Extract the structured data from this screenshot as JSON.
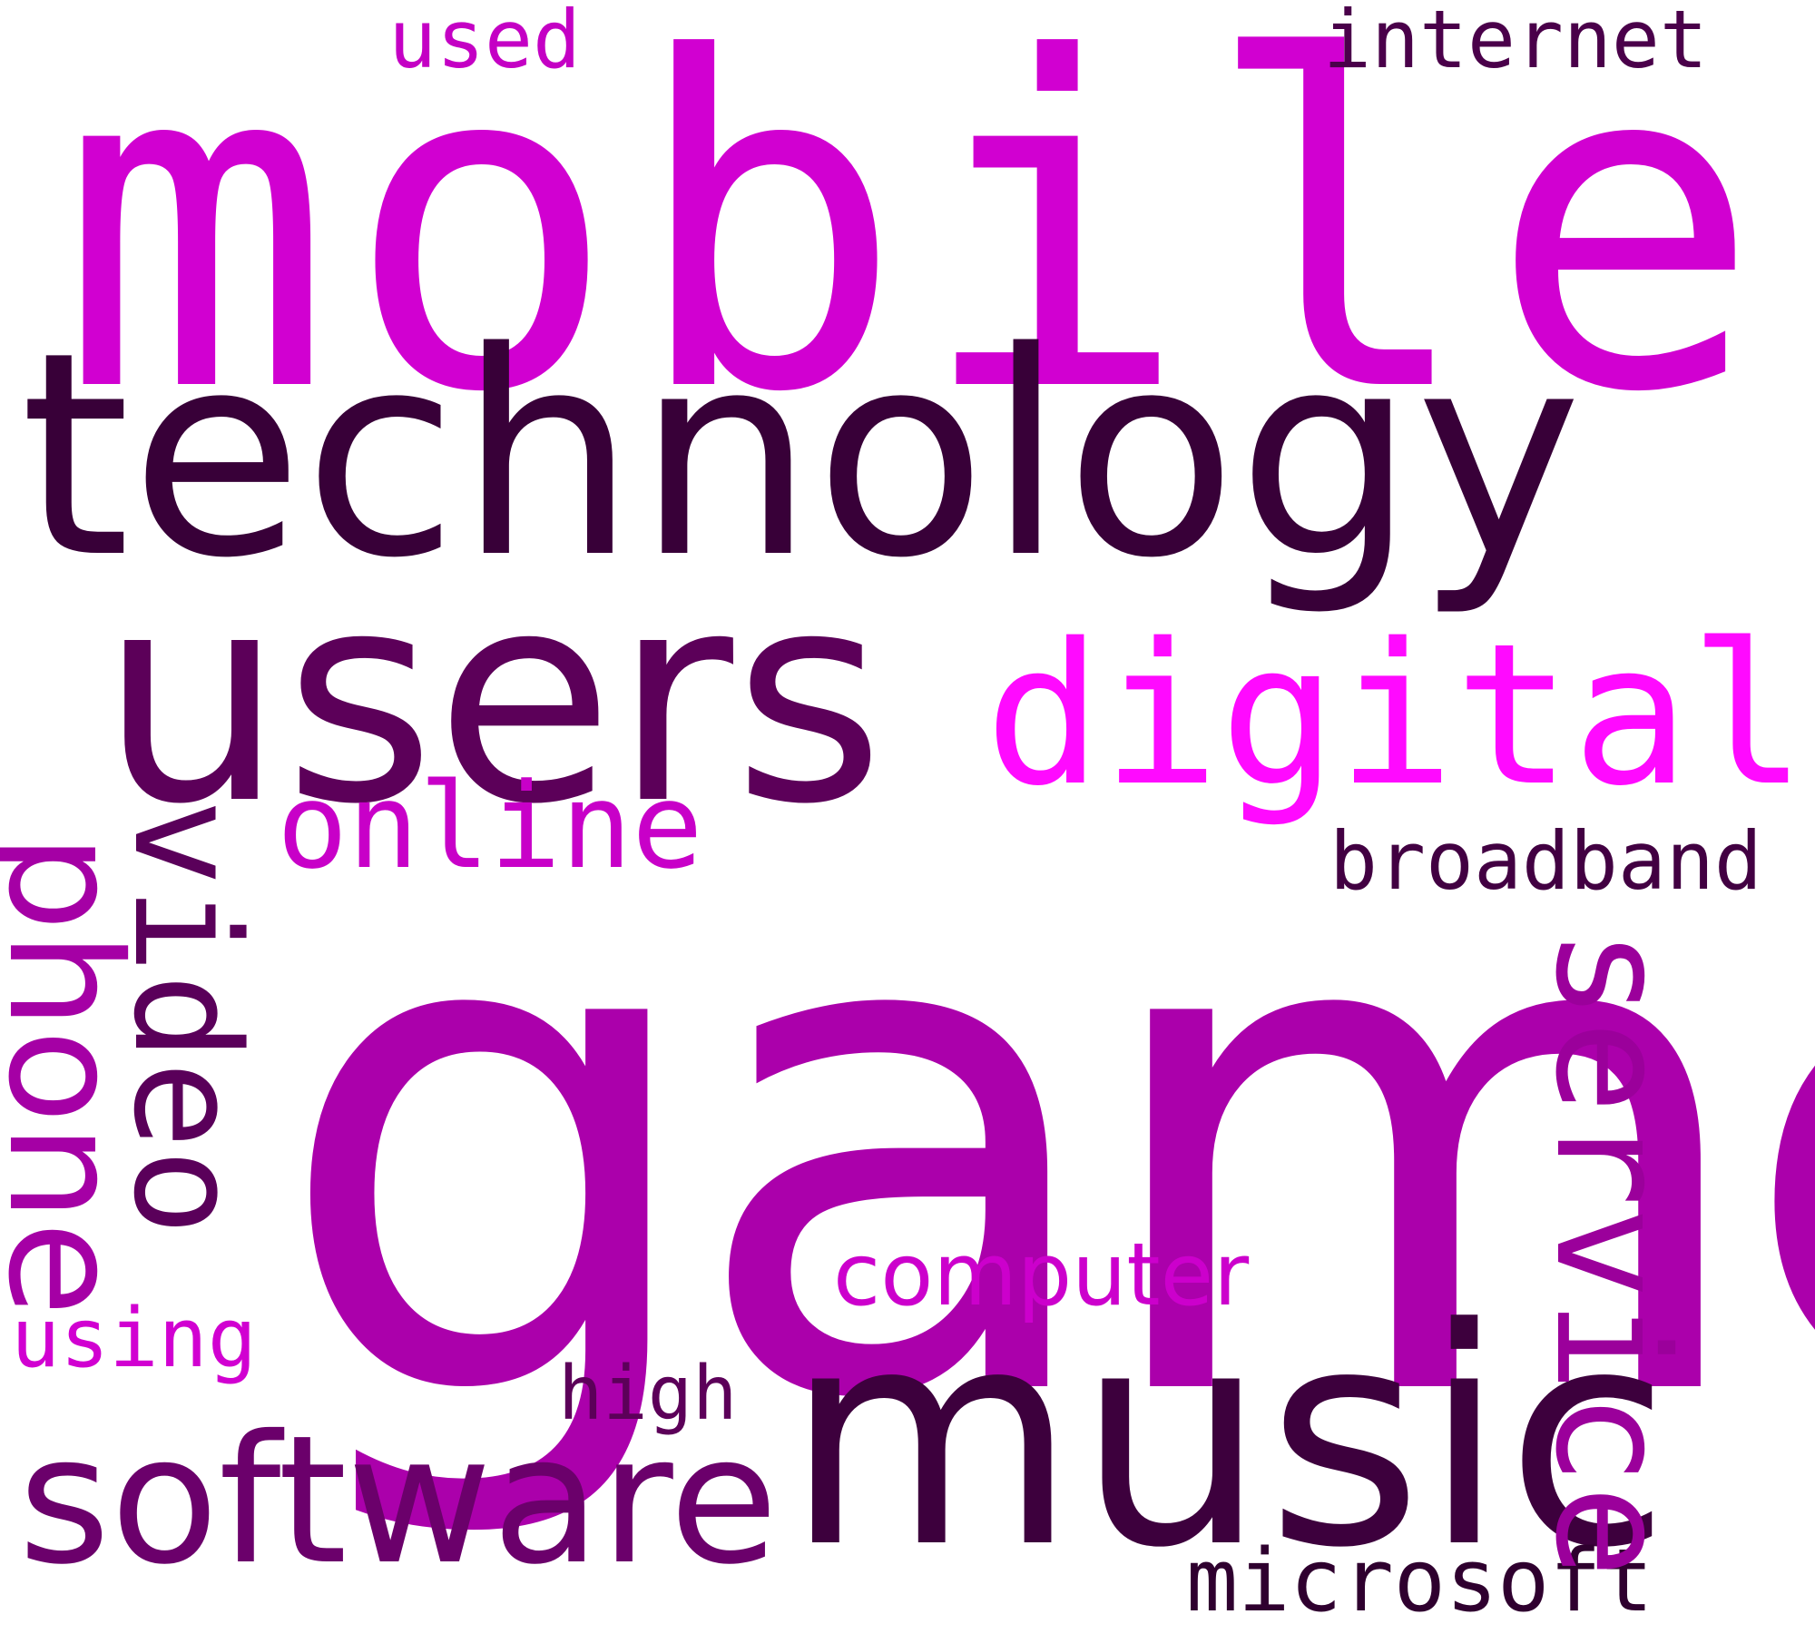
{
  "words": [
    {
      "id": "mobile",
      "text": "mobile",
      "color": "#d100d1",
      "orientation": "horizontal"
    },
    {
      "id": "technology",
      "text": "technology",
      "color": "#380038",
      "orientation": "horizontal"
    },
    {
      "id": "users",
      "text": "users",
      "color": "#5c0059",
      "orientation": "horizontal"
    },
    {
      "id": "digital",
      "text": "digital",
      "color": "#ff0aff",
      "orientation": "horizontal"
    },
    {
      "id": "online",
      "text": "online",
      "color": "#c800c8",
      "orientation": "horizontal"
    },
    {
      "id": "broadband",
      "text": "broadband",
      "color": "#420042",
      "orientation": "horizontal"
    },
    {
      "id": "game",
      "text": "game",
      "color": "#ab00ab",
      "orientation": "horizontal"
    },
    {
      "id": "music",
      "text": "music",
      "color": "#3d003d",
      "orientation": "horizontal"
    },
    {
      "id": "software",
      "text": "software",
      "color": "#6b006b",
      "orientation": "horizontal"
    },
    {
      "id": "computer",
      "text": "computer",
      "color": "#cc00cc",
      "orientation": "horizontal"
    },
    {
      "id": "using",
      "text": "using",
      "color": "#d100d1",
      "orientation": "horizontal"
    },
    {
      "id": "high",
      "text": "high",
      "color": "#5c0059",
      "orientation": "horizontal"
    },
    {
      "id": "microsoft",
      "text": "microsoft",
      "color": "#2f002f",
      "orientation": "horizontal"
    },
    {
      "id": "used",
      "text": "used",
      "color": "#c400c4",
      "orientation": "horizontal"
    },
    {
      "id": "internet",
      "text": "internet",
      "color": "#4a004a",
      "orientation": "horizontal"
    },
    {
      "id": "phone",
      "text": "phone",
      "color": "#a500a5",
      "orientation": "vertical"
    },
    {
      "id": "video",
      "text": "video",
      "color": "#5a005a",
      "orientation": "vertical"
    },
    {
      "id": "service",
      "text": "service",
      "color": "#9b009b",
      "orientation": "vertical"
    }
  ]
}
